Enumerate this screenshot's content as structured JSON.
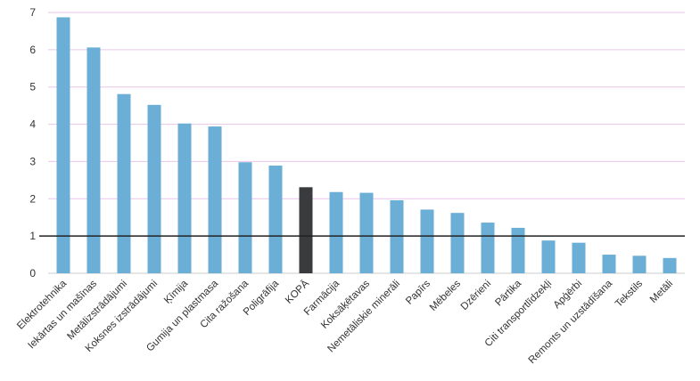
{
  "chart_data": {
    "type": "bar",
    "title": "",
    "xlabel": "",
    "ylabel": "",
    "ylim": [
      0,
      7
    ],
    "yticks": [
      0,
      1,
      2,
      3,
      4,
      5,
      6,
      7
    ],
    "grid": true,
    "reference_line": 1,
    "categories": [
      "Elektrotehnika",
      "Iekārtas un mašīnas",
      "Metālizstrādājumi",
      "Koksnes izstrādājumi",
      "Ķīmija",
      "Gumija un plastmasa",
      "Cita ražošana",
      "Poligrāfija",
      "KOPĀ",
      "Farmācija",
      "Koksāķētavas",
      "Nemetāliskie minerāli",
      "Papīrs",
      "Mēbeles",
      "Dzērieni",
      "Pārtika",
      "Citi transportlīdzekļi",
      "Apģērbi",
      "Remonts un uzstādīšana",
      "Tekstils",
      "Metāli"
    ],
    "values": [
      6.87,
      6.06,
      4.81,
      4.52,
      4.02,
      3.94,
      2.98,
      2.89,
      2.31,
      2.18,
      2.16,
      1.96,
      1.71,
      1.62,
      1.36,
      1.22,
      0.88,
      0.82,
      0.5,
      0.47,
      0.41
    ],
    "highlight_category": "KOPĀ",
    "colors": {
      "bar": "#6baed6",
      "bar_highlight": "#3a3b3d",
      "grid": "#e8c6e8",
      "reference_line": "#222222",
      "axis": "#cccccc",
      "text": "#333333"
    }
  }
}
